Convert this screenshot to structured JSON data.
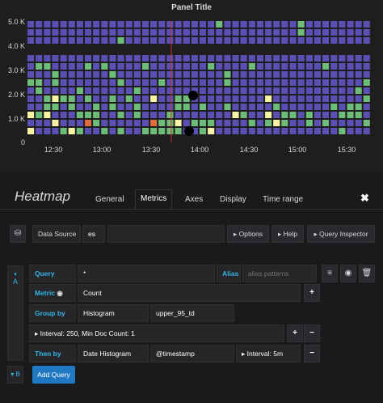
{
  "panel": {
    "title": "Panel Title",
    "y_ticks": [
      "5.0 K",
      "4.0 K",
      "3.0 K",
      "2.0 K",
      "1.0 K",
      "0"
    ],
    "x_ticks": [
      "12:30",
      "13:00",
      "13:30",
      "14:00",
      "14:30",
      "15:00",
      "15:30"
    ]
  },
  "chart_data": {
    "type": "heatmap",
    "title": "Panel Title",
    "x_ticks": [
      "12:30",
      "13:00",
      "13:30",
      "14:00",
      "14:30",
      "15:00",
      "15:30"
    ],
    "y_ticks": [
      "0",
      "1.0 K",
      "2.0 K",
      "3.0 K",
      "4.0 K",
      "5.0 K"
    ],
    "ylim": [
      0,
      5000
    ],
    "colors": {
      "low": "#5a4fb2",
      "mid": "#6ebc7a",
      "high": "#f6f4a4",
      "peak": "#e06b3e",
      "bg": "#1f1d1d"
    },
    "cell_levels_description": "0=empty,1=low,2=mid,3=high,4=peak"
  },
  "editor": {
    "title": "Heatmap",
    "tabs": [
      "General",
      "Metrics",
      "Axes",
      "Display",
      "Time range"
    ],
    "close": "✖"
  },
  "toolbar": {
    "datasource_label": "Data Source",
    "datasource_value": "es",
    "options": "Options",
    "help": "Help",
    "inspector": "Query Inspector"
  },
  "query": {
    "ref_id": "A",
    "query_label": "Query",
    "query_value": "*",
    "alias_label": "Alias",
    "alias_placeholder": "alias patterns",
    "metric_label": "Metric",
    "metric_value": "Count",
    "group_label": "Group by",
    "group_value": "Histogram",
    "group_field": "upper_95_td",
    "interval_text": "Interval: 250, Min Doc Count: 1",
    "then_label": "Then by",
    "then_value": "Date Histogram",
    "then_field": "@timestamp",
    "then_interval": "Interval: 5m"
  },
  "footer": {
    "ref_id": "B",
    "add_query": "Add Query"
  }
}
